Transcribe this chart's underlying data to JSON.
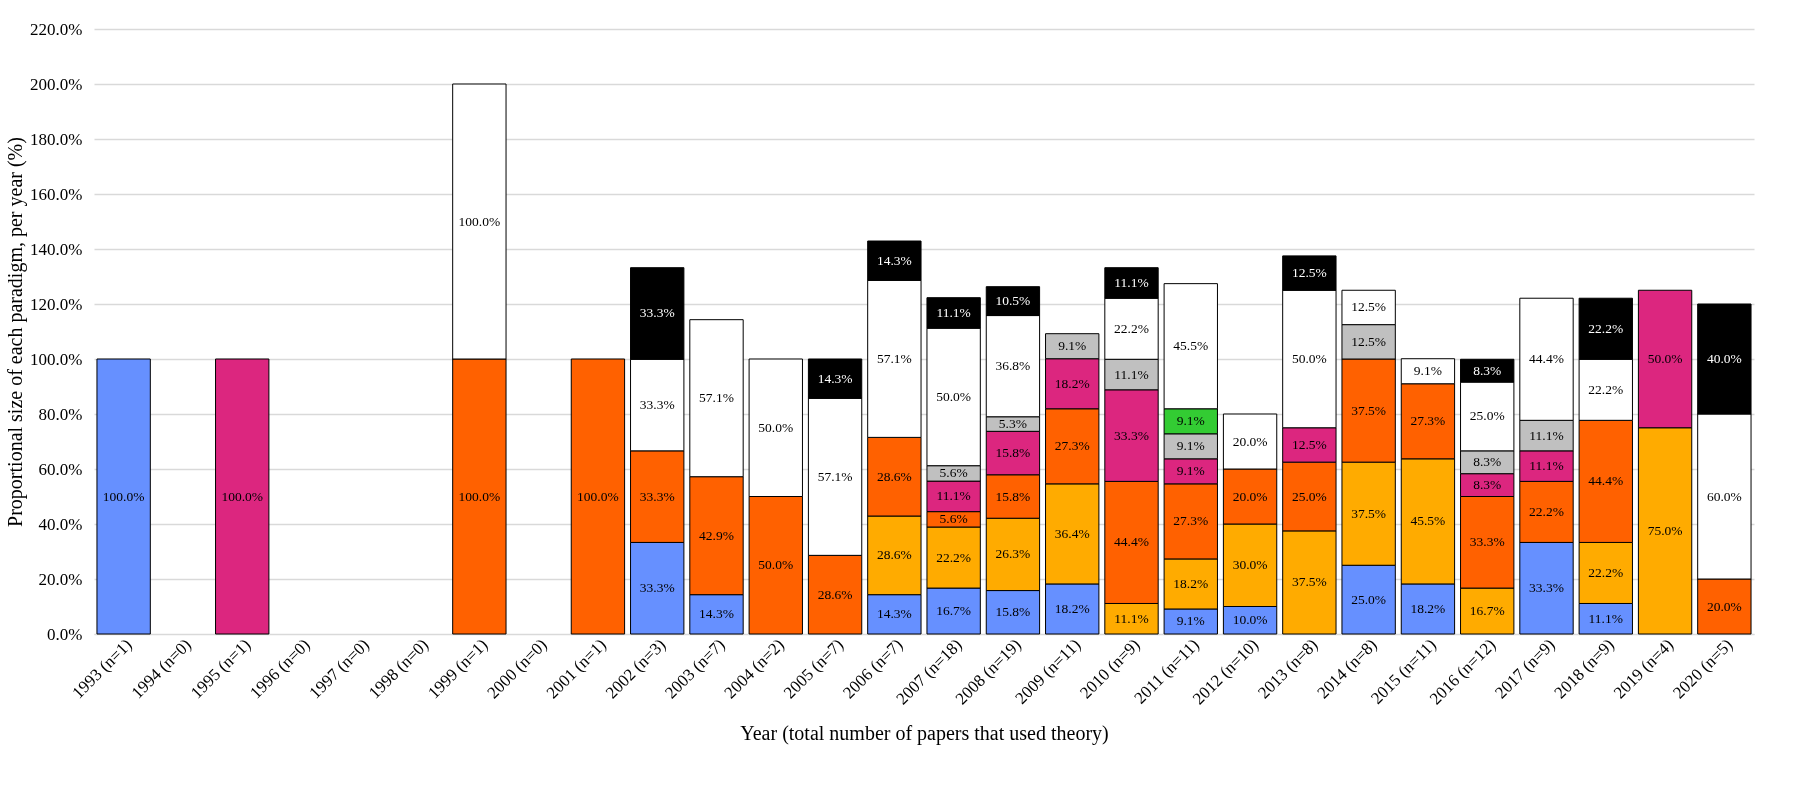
{
  "chart_data": {
    "type": "bar",
    "stacked": true,
    "data_labels": true,
    "grid": "y",
    "xlabel": "Year (total number of papers that used theory)",
    "ylabel": "Proportional size of each paradigm, per year (%)",
    "categories": [
      "1993 (n=1)",
      "1994 (n=0)",
      "1995 (n=1)",
      "1996 (n=0)",
      "1997 (n=0)",
      "1998 (n=0)",
      "1999 (n=1)",
      "2000 (n=0)",
      "2001 (n=1)",
      "2002 (n=3)",
      "2003 (n=7)",
      "2004 (n=2)",
      "2005 (n=7)",
      "2006 (n=7)",
      "2007 (n=18)",
      "2008 (n=19)",
      "2009 (n=11)",
      "2010 (n=9)",
      "2011 (n=11)",
      "2012 (n=10)",
      "2013 (n=8)",
      "2014 (n=8)",
      "2015 (n=11)",
      "2016 (n=12)",
      "2017 (n=9)",
      "2018 (n=9)",
      "2019 (n=4)",
      "2020 (n=5)"
    ],
    "ylim": [
      0,
      220
    ],
    "yticks": [
      {
        "value": 0,
        "label": "0.0%"
      },
      {
        "value": 20,
        "label": "20.0%"
      },
      {
        "value": 40,
        "label": "40.0%"
      },
      {
        "value": 60,
        "label": "60.0%"
      },
      {
        "value": 80,
        "label": "80.0%"
      },
      {
        "value": 100,
        "label": "100.0%"
      },
      {
        "value": 120,
        "label": "120.0%"
      },
      {
        "value": 140,
        "label": "140.0%"
      },
      {
        "value": 160,
        "label": "160.0%"
      },
      {
        "value": 180,
        "label": "180.0%"
      },
      {
        "value": 200,
        "label": "200.0%"
      },
      {
        "value": 220,
        "label": "220.0%"
      }
    ],
    "series": [
      {
        "color": "#6690ff",
        "values": [
          100,
          null,
          null,
          null,
          null,
          null,
          null,
          null,
          null,
          33.3,
          14.3,
          null,
          null,
          14.3,
          16.7,
          15.8,
          18.2,
          null,
          9.1,
          10.0,
          null,
          25.0,
          18.2,
          null,
          33.3,
          11.1,
          null,
          null
        ],
        "value_labels": [
          "100.0%",
          null,
          null,
          null,
          null,
          null,
          null,
          null,
          null,
          "33.3%",
          "14.3%",
          null,
          null,
          "14.3%",
          "16.7%",
          "15.8%",
          "18.2%",
          null,
          "9.1%",
          "10.0%",
          null,
          "25.0%",
          "18.2%",
          null,
          "33.3%",
          "11.1%",
          null,
          null
        ]
      },
      {
        "color": "#ffab00",
        "values": [
          null,
          null,
          null,
          null,
          null,
          null,
          null,
          null,
          null,
          null,
          null,
          null,
          null,
          28.6,
          22.2,
          26.3,
          36.4,
          11.1,
          18.2,
          30.0,
          37.5,
          37.5,
          45.5,
          16.7,
          null,
          22.2,
          75.0,
          null
        ],
        "value_labels": [
          null,
          null,
          null,
          null,
          null,
          null,
          null,
          null,
          null,
          null,
          null,
          null,
          null,
          "28.6%",
          "22.2%",
          "26.3%",
          "36.4%",
          "11.1%",
          "18.2%",
          "30.0%",
          "37.5%",
          "37.5%",
          "45.5%",
          "16.7%",
          null,
          "22.2%",
          "75.0%",
          null
        ]
      },
      {
        "color": "#ff6100",
        "values": [
          null,
          null,
          null,
          null,
          null,
          null,
          100,
          null,
          100,
          33.3,
          42.9,
          50.0,
          28.6,
          28.6,
          5.6,
          15.8,
          27.3,
          44.4,
          27.3,
          20.0,
          25.0,
          37.5,
          27.3,
          33.3,
          22.2,
          44.4,
          null,
          20.0
        ],
        "value_labels": [
          null,
          null,
          null,
          null,
          null,
          null,
          "100.0%",
          null,
          "100.0%",
          "33.3%",
          "42.9%",
          "50.0%",
          "28.6%",
          "28.6%",
          "5.6%",
          "15.8%",
          "27.3%",
          "44.4%",
          "27.3%",
          "20.0%",
          "25.0%",
          "37.5%",
          "27.3%",
          "33.3%",
          "22.2%",
          "44.4%",
          null,
          "20.0%"
        ]
      },
      {
        "color": "#dc267f",
        "values": [
          null,
          null,
          100,
          null,
          null,
          null,
          null,
          null,
          null,
          null,
          null,
          null,
          null,
          null,
          11.1,
          15.8,
          18.2,
          33.3,
          9.1,
          null,
          12.5,
          null,
          null,
          8.3,
          11.1,
          null,
          50.0,
          null
        ],
        "value_labels": [
          null,
          null,
          "100.0%",
          null,
          null,
          null,
          null,
          null,
          null,
          null,
          null,
          null,
          null,
          null,
          "11.1%",
          "15.8%",
          "18.2%",
          "33.3%",
          "9.1%",
          null,
          "12.5%",
          null,
          null,
          "8.3%",
          "11.1%",
          null,
          "50.0%",
          null
        ]
      },
      {
        "color": "#c0c0c0",
        "values": [
          null,
          null,
          null,
          null,
          null,
          null,
          null,
          null,
          null,
          null,
          null,
          null,
          null,
          null,
          5.6,
          5.3,
          9.1,
          11.1,
          9.1,
          null,
          null,
          12.5,
          null,
          8.3,
          11.1,
          null,
          null,
          null
        ],
        "value_labels": [
          null,
          null,
          null,
          null,
          null,
          null,
          null,
          null,
          null,
          null,
          null,
          null,
          null,
          null,
          "5.6%",
          "5.3%",
          "9.1%",
          "11.1%",
          "9.1%",
          null,
          null,
          "12.5%",
          null,
          "8.3%",
          "11.1%",
          null,
          null,
          null
        ]
      },
      {
        "color": "#33cc33",
        "values": [
          null,
          null,
          null,
          null,
          null,
          null,
          null,
          null,
          null,
          null,
          null,
          null,
          null,
          null,
          null,
          null,
          null,
          null,
          9.1,
          null,
          null,
          null,
          null,
          null,
          null,
          null,
          null,
          null
        ],
        "value_labels": [
          null,
          null,
          null,
          null,
          null,
          null,
          null,
          null,
          null,
          null,
          null,
          null,
          null,
          null,
          null,
          null,
          null,
          null,
          "9.1%",
          null,
          null,
          null,
          null,
          null,
          null,
          null,
          null,
          null
        ]
      },
      {
        "color": "#ffffff",
        "values": [
          null,
          null,
          null,
          null,
          null,
          null,
          100,
          null,
          null,
          33.3,
          57.1,
          50.0,
          57.1,
          57.1,
          50.0,
          36.8,
          null,
          22.2,
          45.5,
          20.0,
          50.0,
          12.5,
          9.1,
          25.0,
          44.4,
          22.2,
          null,
          60.0
        ],
        "value_labels": [
          null,
          null,
          null,
          null,
          null,
          null,
          "100.0%",
          null,
          null,
          "33.3%",
          "57.1%",
          "50.0%",
          "57.1%",
          "57.1%",
          "50.0%",
          "36.8%",
          null,
          "22.2%",
          "45.5%",
          "20.0%",
          "50.0%",
          "12.5%",
          "9.1%",
          "25.0%",
          "44.4%",
          "22.2%",
          null,
          "60.0%"
        ]
      },
      {
        "color": "#000000",
        "values": [
          null,
          null,
          null,
          null,
          null,
          null,
          null,
          null,
          null,
          33.3,
          null,
          null,
          14.3,
          14.3,
          11.1,
          10.5,
          null,
          11.1,
          null,
          null,
          12.5,
          null,
          null,
          8.3,
          null,
          22.2,
          null,
          40.0
        ],
        "value_labels": [
          null,
          null,
          null,
          null,
          null,
          null,
          null,
          null,
          null,
          "33.3%",
          null,
          null,
          "14.3%",
          "14.3%",
          "11.1%",
          "10.5%",
          null,
          "11.1%",
          null,
          null,
          "12.5%",
          null,
          null,
          "8.3%",
          null,
          "22.2%",
          null,
          "40.0%"
        ]
      }
    ]
  }
}
